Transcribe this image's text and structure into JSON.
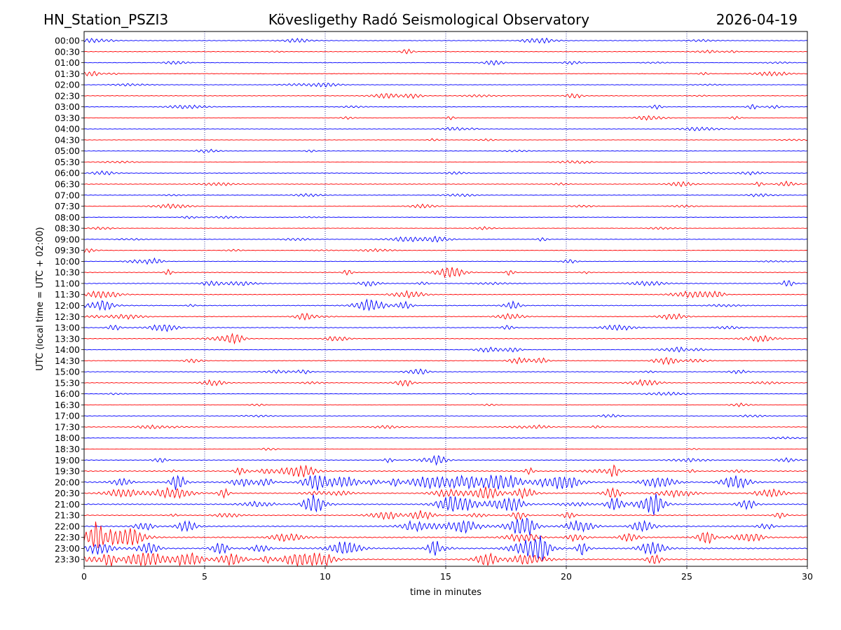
{
  "header": {
    "station": "HN_Station_PSZI3",
    "observatory": "Kövesligethy Radó Seismological Observatory",
    "date": "2026-04-19"
  },
  "chart_data": {
    "type": "line",
    "title": "Kövesligethy Radó Seismological Observatory",
    "xlabel": "time in minutes",
    "ylabel": "UTC (local time = UTC + 02:00)",
    "xlim": [
      0,
      30
    ],
    "xticks": [
      0,
      5,
      10,
      15,
      20,
      25,
      30
    ],
    "vertical_gridlines": [
      5,
      10,
      15,
      20,
      25
    ],
    "grid": "dotted vertical",
    "colors": {
      "even_row": "#0000ff",
      "odd_row": "#ff0000",
      "grid": "#000080"
    },
    "rows": [
      {
        "label": "00:00",
        "activity": 0.3
      },
      {
        "label": "00:30",
        "activity": 0.2
      },
      {
        "label": "01:00",
        "activity": 0.25
      },
      {
        "label": "01:30",
        "activity": 0.2
      },
      {
        "label": "02:00",
        "activity": 0.2
      },
      {
        "label": "02:30",
        "activity": 0.25
      },
      {
        "label": "03:00",
        "activity": 0.25
      },
      {
        "label": "03:30",
        "activity": 0.15
      },
      {
        "label": "04:00",
        "activity": 0.1
      },
      {
        "label": "04:30",
        "activity": 0.1
      },
      {
        "label": "05:00",
        "activity": 0.1
      },
      {
        "label": "05:30",
        "activity": 0.1
      },
      {
        "label": "06:00",
        "activity": 0.2
      },
      {
        "label": "06:30",
        "activity": 0.25
      },
      {
        "label": "07:00",
        "activity": 0.2
      },
      {
        "label": "07:30",
        "activity": 0.2
      },
      {
        "label": "08:00",
        "activity": 0.1
      },
      {
        "label": "08:30",
        "activity": 0.1
      },
      {
        "label": "09:00",
        "activity": 0.25
      },
      {
        "label": "09:30",
        "activity": 0.2
      },
      {
        "label": "10:00",
        "activity": 0.2
      },
      {
        "label": "10:30",
        "activity": 0.3
      },
      {
        "label": "11:00",
        "activity": 0.4
      },
      {
        "label": "11:30",
        "activity": 0.35
      },
      {
        "label": "12:00",
        "activity": 0.45
      },
      {
        "label": "12:30",
        "activity": 0.3
      },
      {
        "label": "13:00",
        "activity": 0.35
      },
      {
        "label": "13:30",
        "activity": 0.3
      },
      {
        "label": "14:00",
        "activity": 0.25
      },
      {
        "label": "14:30",
        "activity": 0.35
      },
      {
        "label": "15:00",
        "activity": 0.3
      },
      {
        "label": "15:30",
        "activity": 0.3
      },
      {
        "label": "16:00",
        "activity": 0.1
      },
      {
        "label": "16:30",
        "activity": 0.1
      },
      {
        "label": "17:00",
        "activity": 0.1
      },
      {
        "label": "17:30",
        "activity": 0.3
      },
      {
        "label": "18:00",
        "activity": 0.05
      },
      {
        "label": "18:30",
        "activity": 0.05
      },
      {
        "label": "19:00",
        "activity": 0.3
      },
      {
        "label": "19:30",
        "activity": 0.6
      },
      {
        "label": "20:00",
        "activity": 1.0
      },
      {
        "label": "20:30",
        "activity": 0.7
      },
      {
        "label": "21:00",
        "activity": 0.8
      },
      {
        "label": "21:30",
        "activity": 0.5
      },
      {
        "label": "22:00",
        "activity": 0.8
      },
      {
        "label": "22:30",
        "activity": 0.85
      },
      {
        "label": "23:00",
        "activity": 0.9
      },
      {
        "label": "23:30",
        "activity": 0.95
      }
    ]
  }
}
